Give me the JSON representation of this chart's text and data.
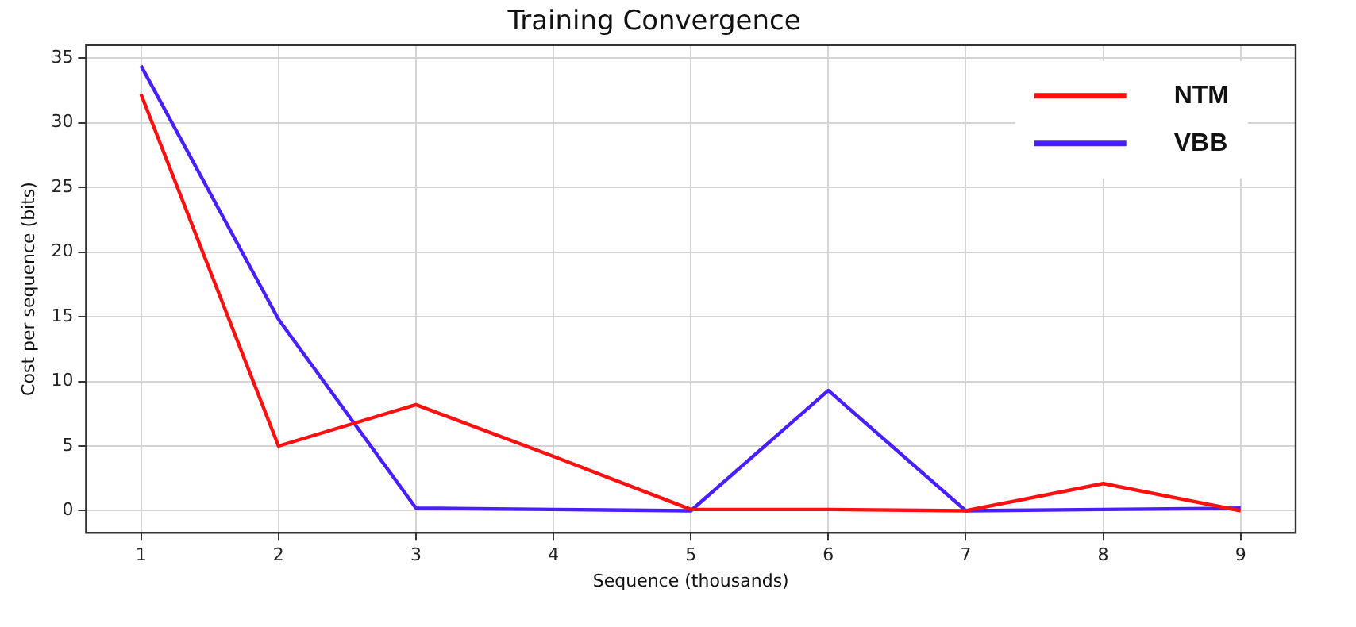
{
  "chart_data": {
    "type": "line",
    "title": "Training Convergence",
    "xlabel": "Sequence (thousands)",
    "ylabel": "Cost per sequence (bits)",
    "x": [
      1,
      2,
      3,
      4,
      5,
      6,
      7,
      8,
      9
    ],
    "series": [
      {
        "name": "NTM",
        "color": "#ff1010",
        "values": [
          32.2,
          5.0,
          8.2,
          4.2,
          0.1,
          0.1,
          0.0,
          2.1,
          0.0
        ]
      },
      {
        "name": "VBB",
        "color": "#4a1fff",
        "values": [
          34.4,
          14.8,
          0.2,
          0.1,
          0.0,
          9.3,
          0.0,
          0.1,
          0.2
        ]
      }
    ],
    "xlim": [
      0.6,
      9.4
    ],
    "xticks": [
      1,
      2,
      3,
      4,
      5,
      6,
      7,
      8,
      9
    ],
    "ylim": [
      -1.7,
      36
    ],
    "yticks": [
      0,
      5,
      10,
      15,
      20,
      25,
      30,
      35
    ],
    "grid": true,
    "legend": "top right",
    "marker": "none",
    "line_style": "solid"
  }
}
